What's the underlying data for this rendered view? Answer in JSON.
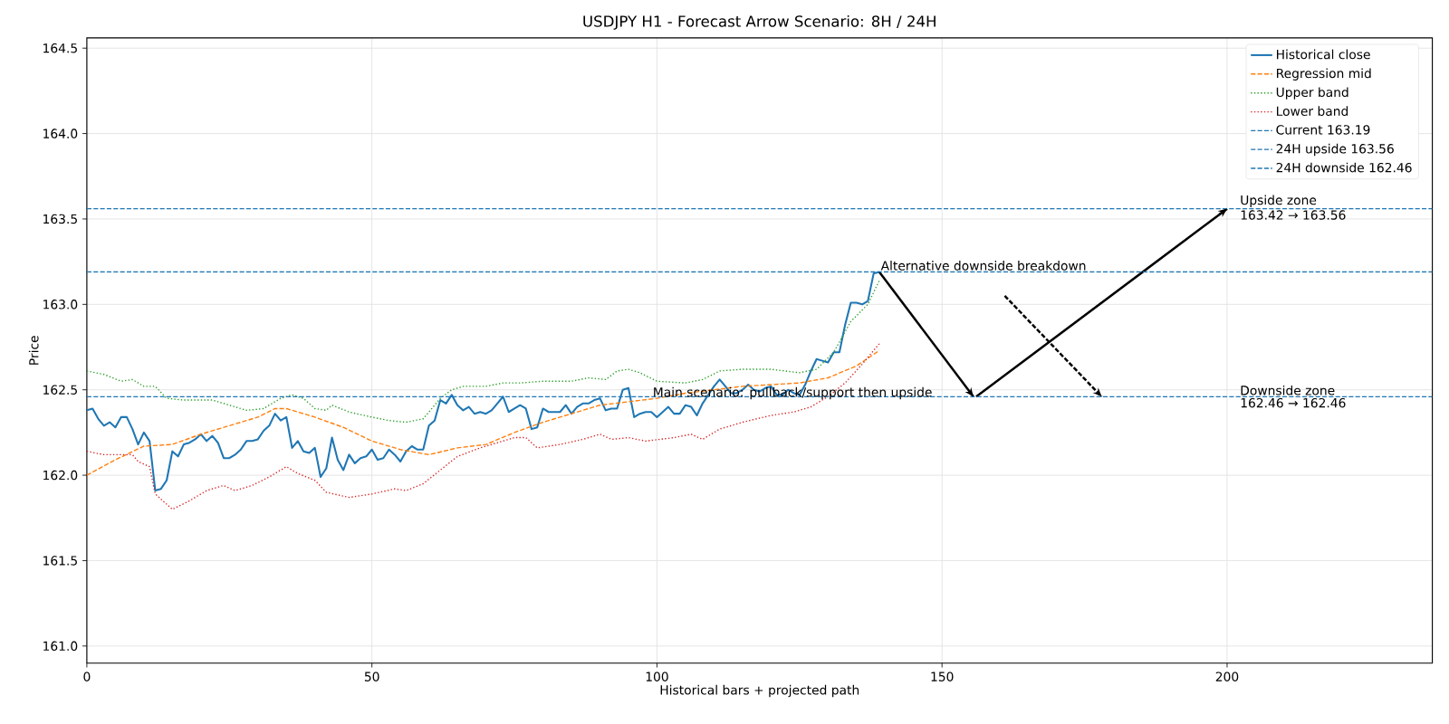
{
  "chart_data": {
    "type": "line",
    "title": "USDJPY H1 - Forecast Arrow Scenario: 8H / 24H",
    "xlabel": "Historical bars + projected path",
    "ylabel": "Price",
    "xlim": [
      0,
      236
    ],
    "xticks": [
      0,
      50,
      100,
      150,
      200
    ],
    "ylim": [
      160.9,
      164.56
    ],
    "yticks": [
      {
        "value": 161,
        "label": "161.0"
      },
      {
        "value": 161.5,
        "label": "161.5"
      },
      {
        "value": 162,
        "label": "162.0"
      },
      {
        "value": 162.5,
        "label": "162.5"
      },
      {
        "value": 163,
        "label": "163.0"
      },
      {
        "value": 163.5,
        "label": "163.5"
      },
      {
        "value": 164,
        "label": "164.0"
      },
      {
        "value": 164.5,
        "label": "164.5"
      }
    ],
    "grid": true,
    "legend": "top right",
    "series": [
      {
        "name": "Historical close",
        "color": "#1f77b4",
        "line_style": "solid",
        "x": [
          0,
          1,
          2,
          3,
          4,
          5,
          6,
          7,
          8,
          9,
          10,
          11,
          12,
          13,
          14,
          15,
          16,
          17,
          18,
          19,
          20,
          21,
          22,
          23,
          24,
          25,
          26,
          27,
          28,
          29,
          30,
          31,
          32,
          33,
          34,
          35,
          36,
          37,
          38,
          39,
          40,
          41,
          42,
          43,
          44,
          45,
          46,
          47,
          48,
          49,
          50,
          51,
          52,
          53,
          54,
          55,
          56,
          57,
          58,
          59,
          60,
          61,
          62,
          63,
          64,
          65,
          66,
          67,
          68,
          69,
          70,
          71,
          72,
          73,
          74,
          75,
          76,
          77,
          78,
          79,
          80,
          81,
          82,
          83,
          84,
          85,
          86,
          87,
          88,
          89,
          90,
          91,
          92,
          93,
          94,
          95,
          96,
          97,
          98,
          99,
          100,
          101,
          102,
          103,
          104,
          105,
          106,
          107,
          108,
          109,
          110,
          111,
          112,
          113,
          114,
          115,
          116,
          117,
          118,
          119,
          120,
          121,
          122,
          123,
          124,
          125,
          126,
          127,
          128,
          129,
          130,
          131,
          132,
          133,
          134,
          135,
          136,
          137,
          138,
          139
        ],
        "values": [
          162.38,
          162.39,
          162.33,
          162.29,
          162.31,
          162.28,
          162.34,
          162.34,
          162.27,
          162.18,
          162.25,
          162.2,
          161.91,
          161.92,
          161.97,
          162.14,
          162.11,
          162.18,
          162.19,
          162.21,
          162.24,
          162.2,
          162.23,
          162.19,
          162.1,
          162.1,
          162.12,
          162.15,
          162.2,
          162.2,
          162.21,
          162.26,
          162.29,
          162.36,
          162.32,
          162.34,
          162.16,
          162.2,
          162.14,
          162.13,
          162.16,
          161.99,
          162.04,
          162.22,
          162.09,
          162.03,
          162.12,
          162.07,
          162.1,
          162.11,
          162.15,
          162.09,
          162.1,
          162.15,
          162.12,
          162.08,
          162.14,
          162.17,
          162.15,
          162.15,
          162.29,
          162.32,
          162.44,
          162.42,
          162.47,
          162.41,
          162.38,
          162.4,
          162.36,
          162.37,
          162.36,
          162.38,
          162.42,
          162.46,
          162.37,
          162.39,
          162.41,
          162.39,
          162.27,
          162.28,
          162.39,
          162.37,
          162.37,
          162.37,
          162.41,
          162.36,
          162.4,
          162.42,
          162.42,
          162.44,
          162.45,
          162.38,
          162.39,
          162.39,
          162.5,
          162.51,
          162.34,
          162.36,
          162.37,
          162.37,
          162.34,
          162.37,
          162.4,
          162.36,
          162.36,
          162.41,
          162.4,
          162.35,
          162.42,
          162.47,
          162.52,
          162.56,
          162.52,
          162.48,
          162.48,
          162.5,
          162.53,
          162.5,
          162.49,
          162.51,
          162.52,
          162.47,
          162.47,
          162.5,
          162.48,
          162.47,
          162.53,
          162.61,
          162.68,
          162.67,
          162.66,
          162.72,
          162.72,
          162.88,
          163.01,
          163.01,
          163.0,
          163.02,
          163.18,
          163.19
        ]
      },
      {
        "name": "Regression mid",
        "color": "#ff7f0e",
        "line_style": "dashed",
        "x": [
          0,
          5,
          10,
          15,
          20,
          25,
          30,
          33,
          35,
          40,
          45,
          50,
          55,
          60,
          65,
          70,
          75,
          80,
          85,
          90,
          95,
          100,
          105,
          110,
          115,
          120,
          125,
          130,
          135,
          139
        ],
        "values": [
          162.0,
          162.09,
          162.17,
          162.18,
          162.24,
          162.29,
          162.34,
          162.39,
          162.39,
          162.34,
          162.28,
          162.2,
          162.15,
          162.12,
          162.16,
          162.18,
          162.25,
          162.31,
          162.36,
          162.41,
          162.43,
          162.45,
          162.48,
          162.5,
          162.52,
          162.53,
          162.54,
          162.57,
          162.64,
          162.73
        ]
      },
      {
        "name": "Upper band",
        "color": "#2ca02c",
        "line_style": "dotted",
        "x": [
          0,
          3,
          6,
          8,
          9,
          10,
          12,
          14,
          17,
          20,
          22,
          25,
          28,
          31,
          34,
          36,
          38,
          40,
          42,
          43,
          46,
          50,
          53,
          56,
          59,
          62,
          64,
          66,
          70,
          73,
          76,
          80,
          85,
          88,
          91,
          93,
          95,
          97,
          100,
          105,
          108,
          111,
          115,
          120,
          125,
          128,
          131,
          134,
          137,
          139
        ],
        "values": [
          162.61,
          162.59,
          162.55,
          162.56,
          162.54,
          162.52,
          162.52,
          162.45,
          162.44,
          162.44,
          162.44,
          162.41,
          162.38,
          162.39,
          162.45,
          162.47,
          162.45,
          162.39,
          162.38,
          162.41,
          162.37,
          162.34,
          162.32,
          162.31,
          162.33,
          162.45,
          162.5,
          162.52,
          162.52,
          162.54,
          162.54,
          162.55,
          162.55,
          162.57,
          162.56,
          162.61,
          162.62,
          162.6,
          162.55,
          162.54,
          162.56,
          162.61,
          162.62,
          162.62,
          162.6,
          162.62,
          162.72,
          162.9,
          163.0,
          163.14
        ]
      },
      {
        "name": "Lower band",
        "color": "#d62728",
        "line_style": "dotted",
        "x": [
          0,
          3,
          6,
          8,
          9,
          11,
          12,
          15,
          18,
          21,
          24,
          26,
          29,
          32,
          35,
          37,
          40,
          42,
          46,
          50,
          54,
          56,
          59,
          62,
          65,
          69,
          72,
          75,
          77,
          79,
          83,
          87,
          90,
          92,
          95,
          98,
          103,
          106,
          108,
          111,
          115,
          120,
          124,
          127,
          130,
          133,
          136,
          139
        ],
        "values": [
          162.14,
          162.12,
          162.12,
          162.12,
          162.08,
          162.05,
          161.89,
          161.8,
          161.85,
          161.91,
          161.94,
          161.91,
          161.94,
          161.99,
          162.05,
          162.01,
          161.97,
          161.9,
          161.87,
          161.89,
          161.92,
          161.91,
          161.95,
          162.03,
          162.11,
          162.16,
          162.19,
          162.22,
          162.22,
          162.16,
          162.18,
          162.21,
          162.24,
          162.21,
          162.22,
          162.2,
          162.22,
          162.24,
          162.21,
          162.27,
          162.31,
          162.35,
          162.37,
          162.4,
          162.46,
          162.54,
          162.65,
          162.77
        ]
      },
      {
        "color": "#000000",
        "line_style": "solid",
        "x": [
          139,
          155.5
        ],
        "values": [
          163.19,
          162.46
        ]
      },
      {
        "color": "#000000",
        "line_style": "solid",
        "x": [
          156,
          200
        ],
        "values": [
          162.46,
          163.56
        ]
      },
      {
        "color": "#000000",
        "line_style": "dashed",
        "x": [
          161,
          178
        ],
        "values": [
          163.05,
          162.46
        ]
      }
    ],
    "ref_lines": [
      {
        "axis": "y",
        "value": 163.19,
        "label": "Current 163.19",
        "color": "#1f77b4",
        "line_style": "dashed"
      },
      {
        "axis": "y",
        "value": 163.56,
        "label": "24H upside 163.56",
        "color": "#1f77b4",
        "line_style": "dashed"
      },
      {
        "axis": "y",
        "value": 162.46,
        "label": "24H downside 162.46",
        "color": "#1f77b4",
        "line_style": "dashed"
      }
    ],
    "annotations": [
      {
        "text": "Alternative downside breakdown",
        "x": 139,
        "y": 163.19
      },
      {
        "text": "Main scenario: pullback/support then upside",
        "x": 99,
        "y": 162.46
      },
      {
        "text": "Upside zone",
        "x": 202,
        "y": 163.56
      },
      {
        "text": "163.42 → 163.56",
        "x": 202,
        "y": 163.56
      },
      {
        "text": "Downside zone",
        "x": 202,
        "y": 162.46
      },
      {
        "text": "162.46 → 162.46",
        "x": 202,
        "y": 162.46
      }
    ]
  }
}
